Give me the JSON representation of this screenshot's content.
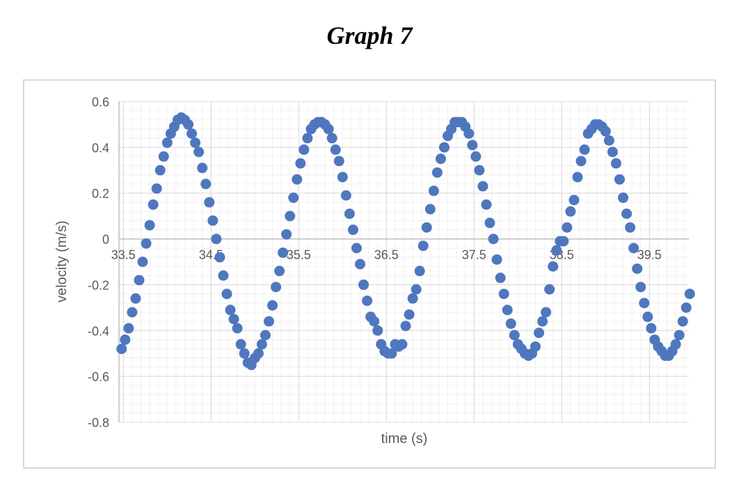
{
  "figure_title": "Graph 7",
  "chart_data": {
    "type": "scatter",
    "title": "",
    "xlabel": "time (s)",
    "ylabel": "velocity (m/s)",
    "xlim": [
      33.45,
      39.95
    ],
    "ylim": [
      -0.8,
      0.6
    ],
    "x_ticks": [
      33.5,
      34.5,
      35.5,
      36.5,
      37.5,
      38.5,
      39.5
    ],
    "x_tick_labels": [
      "33.5",
      "34.5",
      "35.5",
      "36.5",
      "37.5",
      "38.5",
      "39.5"
    ],
    "y_ticks": [
      0.6,
      0.4,
      0.2,
      0,
      -0.2,
      -0.4,
      -0.6,
      -0.8
    ],
    "y_tick_labels": [
      "0.6",
      "0.4",
      "0.2",
      "0",
      "-0.2",
      "-0.4",
      "-0.6",
      "-0.8"
    ],
    "grid": true,
    "minor_grid": true,
    "marker_color": "#4f77be",
    "points": [
      [
        33.48,
        -0.48
      ],
      [
        33.52,
        -0.44
      ],
      [
        33.56,
        -0.39
      ],
      [
        33.6,
        -0.32
      ],
      [
        33.64,
        -0.26
      ],
      [
        33.68,
        -0.18
      ],
      [
        33.72,
        -0.1
      ],
      [
        33.76,
        -0.02
      ],
      [
        33.8,
        0.06
      ],
      [
        33.84,
        0.15
      ],
      [
        33.88,
        0.22
      ],
      [
        33.92,
        0.3
      ],
      [
        33.96,
        0.36
      ],
      [
        34.0,
        0.42
      ],
      [
        34.04,
        0.46
      ],
      [
        34.08,
        0.49
      ],
      [
        34.12,
        0.52
      ],
      [
        34.16,
        0.53
      ],
      [
        34.2,
        0.52
      ],
      [
        34.24,
        0.5
      ],
      [
        34.28,
        0.46
      ],
      [
        34.32,
        0.42
      ],
      [
        34.36,
        0.38
      ],
      [
        34.4,
        0.31
      ],
      [
        34.44,
        0.24
      ],
      [
        34.48,
        0.16
      ],
      [
        34.52,
        0.08
      ],
      [
        34.56,
        0.0
      ],
      [
        34.6,
        -0.08
      ],
      [
        34.64,
        -0.16
      ],
      [
        34.68,
        -0.24
      ],
      [
        34.72,
        -0.31
      ],
      [
        34.76,
        -0.35
      ],
      [
        34.8,
        -0.39
      ],
      [
        34.84,
        -0.46
      ],
      [
        34.88,
        -0.5
      ],
      [
        34.92,
        -0.54
      ],
      [
        34.96,
        -0.55
      ],
      [
        35.0,
        -0.52
      ],
      [
        35.04,
        -0.5
      ],
      [
        35.08,
        -0.46
      ],
      [
        35.12,
        -0.42
      ],
      [
        35.16,
        -0.36
      ],
      [
        35.2,
        -0.29
      ],
      [
        35.24,
        -0.21
      ],
      [
        35.28,
        -0.14
      ],
      [
        35.32,
        -0.06
      ],
      [
        35.36,
        0.02
      ],
      [
        35.4,
        0.1
      ],
      [
        35.44,
        0.18
      ],
      [
        35.48,
        0.26
      ],
      [
        35.52,
        0.33
      ],
      [
        35.56,
        0.39
      ],
      [
        35.6,
        0.44
      ],
      [
        35.64,
        0.48
      ],
      [
        35.68,
        0.5
      ],
      [
        35.72,
        0.51
      ],
      [
        35.76,
        0.51
      ],
      [
        35.8,
        0.5
      ],
      [
        35.84,
        0.48
      ],
      [
        35.88,
        0.44
      ],
      [
        35.92,
        0.39
      ],
      [
        35.96,
        0.34
      ],
      [
        36.0,
        0.27
      ],
      [
        36.04,
        0.19
      ],
      [
        36.08,
        0.11
      ],
      [
        36.12,
        0.04
      ],
      [
        36.16,
        -0.04
      ],
      [
        36.2,
        -0.11
      ],
      [
        36.24,
        -0.2
      ],
      [
        36.28,
        -0.27
      ],
      [
        36.32,
        -0.34
      ],
      [
        36.36,
        -0.36
      ],
      [
        36.4,
        -0.4
      ],
      [
        36.44,
        -0.46
      ],
      [
        36.48,
        -0.49
      ],
      [
        36.52,
        -0.5
      ],
      [
        36.56,
        -0.5
      ],
      [
        36.6,
        -0.46
      ],
      [
        36.64,
        -0.47
      ],
      [
        36.68,
        -0.46
      ],
      [
        36.72,
        -0.38
      ],
      [
        36.76,
        -0.33
      ],
      [
        36.8,
        -0.26
      ],
      [
        36.84,
        -0.22
      ],
      [
        36.88,
        -0.14
      ],
      [
        36.92,
        -0.03
      ],
      [
        36.96,
        0.05
      ],
      [
        37.0,
        0.13
      ],
      [
        37.04,
        0.21
      ],
      [
        37.08,
        0.29
      ],
      [
        37.12,
        0.35
      ],
      [
        37.16,
        0.4
      ],
      [
        37.2,
        0.45
      ],
      [
        37.24,
        0.48
      ],
      [
        37.28,
        0.51
      ],
      [
        37.32,
        0.51
      ],
      [
        37.36,
        0.51
      ],
      [
        37.4,
        0.49
      ],
      [
        37.44,
        0.46
      ],
      [
        37.48,
        0.41
      ],
      [
        37.52,
        0.36
      ],
      [
        37.56,
        0.3
      ],
      [
        37.6,
        0.23
      ],
      [
        37.64,
        0.15
      ],
      [
        37.68,
        0.07
      ],
      [
        37.72,
        0.0
      ],
      [
        37.76,
        -0.09
      ],
      [
        37.8,
        -0.17
      ],
      [
        37.84,
        -0.24
      ],
      [
        37.88,
        -0.31
      ],
      [
        37.92,
        -0.37
      ],
      [
        37.96,
        -0.42
      ],
      [
        38.0,
        -0.46
      ],
      [
        38.04,
        -0.48
      ],
      [
        38.08,
        -0.5
      ],
      [
        38.12,
        -0.51
      ],
      [
        38.16,
        -0.5
      ],
      [
        38.2,
        -0.47
      ],
      [
        38.24,
        -0.41
      ],
      [
        38.28,
        -0.36
      ],
      [
        38.32,
        -0.32
      ],
      [
        38.36,
        -0.22
      ],
      [
        38.4,
        -0.12
      ],
      [
        38.44,
        -0.05
      ],
      [
        38.48,
        -0.01
      ],
      [
        38.52,
        -0.01
      ],
      [
        38.56,
        0.05
      ],
      [
        38.6,
        0.12
      ],
      [
        38.64,
        0.17
      ],
      [
        38.68,
        0.27
      ],
      [
        38.72,
        0.34
      ],
      [
        38.76,
        0.39
      ],
      [
        38.8,
        0.46
      ],
      [
        38.84,
        0.48
      ],
      [
        38.88,
        0.5
      ],
      [
        38.92,
        0.5
      ],
      [
        38.96,
        0.49
      ],
      [
        39.0,
        0.47
      ],
      [
        39.04,
        0.43
      ],
      [
        39.08,
        0.38
      ],
      [
        39.12,
        0.33
      ],
      [
        39.16,
        0.26
      ],
      [
        39.2,
        0.18
      ],
      [
        39.24,
        0.11
      ],
      [
        39.28,
        0.05
      ],
      [
        39.32,
        -0.04
      ],
      [
        39.36,
        -0.13
      ],
      [
        39.4,
        -0.21
      ],
      [
        39.44,
        -0.28
      ],
      [
        39.48,
        -0.34
      ],
      [
        39.52,
        -0.39
      ],
      [
        39.56,
        -0.44
      ],
      [
        39.6,
        -0.47
      ],
      [
        39.64,
        -0.49
      ],
      [
        39.68,
        -0.51
      ],
      [
        39.72,
        -0.51
      ],
      [
        39.76,
        -0.49
      ],
      [
        39.8,
        -0.46
      ],
      [
        39.84,
        -0.42
      ],
      [
        39.88,
        -0.36
      ],
      [
        39.92,
        -0.3
      ],
      [
        39.96,
        -0.24
      ]
    ]
  }
}
